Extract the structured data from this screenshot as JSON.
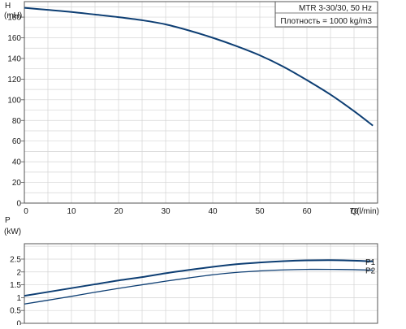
{
  "chart_data": [
    {
      "type": "line",
      "title": "",
      "ylabel": "H",
      "ylabel_unit": "(mH)",
      "xlabel": "Q(l/min)",
      "xlim": [
        0,
        75
      ],
      "ylim": [
        0,
        195
      ],
      "grid": true,
      "x_ticks": [
        "0",
        "10",
        "20",
        "30",
        "40",
        "50",
        "60",
        "70"
      ],
      "y_ticks": [
        "0",
        "20",
        "40",
        "60",
        "80",
        "100",
        "120",
        "140",
        "160",
        "180"
      ],
      "info_lines": [
        "MTR 3-30/30, 50 Hz",
        "Плотность = 1000 kg/m3"
      ],
      "series": [
        {
          "x": [
            0,
            5,
            10,
            15,
            20,
            25,
            30,
            35,
            40,
            45,
            50,
            55,
            60,
            65,
            70,
            74
          ],
          "y": [
            189,
            187,
            185,
            182.5,
            180,
            177,
            173,
            167,
            160,
            152,
            143,
            132,
            119,
            105,
            89,
            75
          ],
          "color": "#0d3e73"
        }
      ]
    },
    {
      "type": "line",
      "title": "",
      "ylabel": "P",
      "ylabel_unit": "(kW)",
      "xlim": [
        0,
        75
      ],
      "ylim": [
        0,
        3.1
      ],
      "grid": true,
      "y_ticks": [
        "0",
        "0.5",
        "1",
        "1.5",
        "2",
        "2.5"
      ],
      "series": [
        {
          "name": "P1",
          "x": [
            0,
            5,
            10,
            15,
            20,
            25,
            30,
            35,
            40,
            45,
            50,
            55,
            60,
            65,
            70,
            74
          ],
          "y": [
            1.07,
            1.22,
            1.37,
            1.52,
            1.67,
            1.8,
            1.95,
            2.08,
            2.2,
            2.3,
            2.37,
            2.42,
            2.45,
            2.46,
            2.44,
            2.41
          ],
          "color": "#0d3e73"
        },
        {
          "name": "P2",
          "x": [
            0,
            5,
            10,
            15,
            20,
            25,
            30,
            35,
            40,
            45,
            50,
            55,
            60,
            65,
            70,
            74
          ],
          "y": [
            0.75,
            0.9,
            1.05,
            1.21,
            1.36,
            1.5,
            1.64,
            1.77,
            1.89,
            1.98,
            2.04,
            2.08,
            2.1,
            2.1,
            2.09,
            2.07
          ],
          "color": "#0d3e73"
        }
      ]
    }
  ]
}
